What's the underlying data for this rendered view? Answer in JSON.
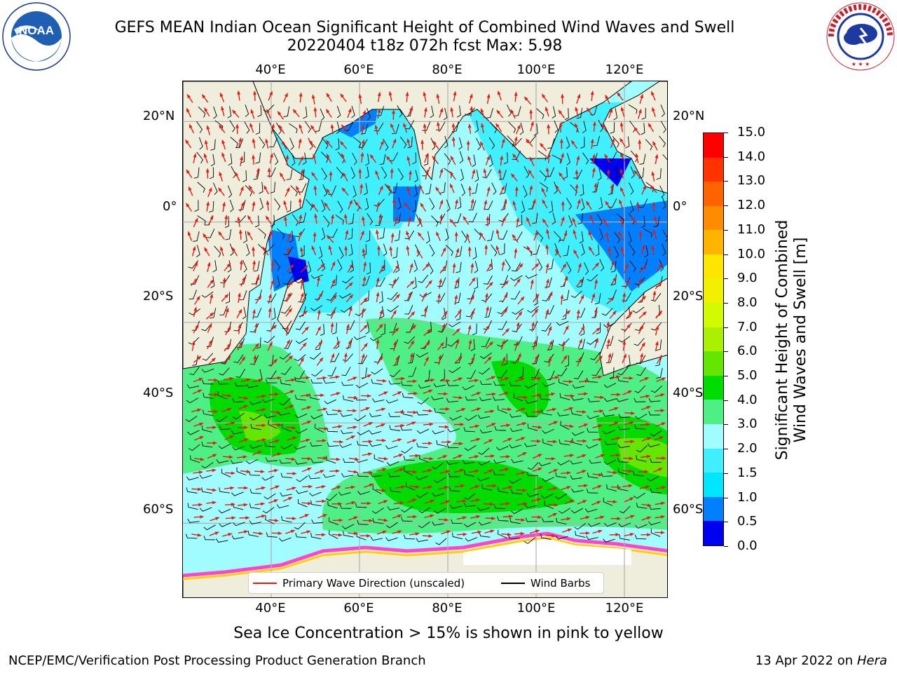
{
  "header": {
    "title": "GEFS MEAN Indian Ocean Significant Height of Combined Wind Waves and Swell",
    "subtitle": "20220404 t18z 072h fcst   Max: 5.98"
  },
  "logos": {
    "left": {
      "icon": "noaa-logo",
      "text": "NOAA",
      "ring_text": "NATIONAL OCEANIC AND ATMOSPHERIC ADMINISTRATION · U.S. DEPARTMENT OF COMMERCE"
    },
    "right": {
      "icon": "national-weather-service-logo",
      "ring_text": "NATIONAL WEATHER SERVICE"
    }
  },
  "map": {
    "lon_labels": [
      "40°E",
      "60°E",
      "80°E",
      "100°E",
      "120°E"
    ],
    "lat_labels": [
      "20°N",
      "0°",
      "20°S",
      "40°S",
      "60°S"
    ],
    "lon_range": [
      20,
      130
    ],
    "lat_range": [
      -75,
      28
    ],
    "land_color": "#efeedd",
    "grid_color": "#b0b0b0",
    "wave_arrow_color": "#e8190f",
    "wind_barb_color": "#000000",
    "sea_ice_colors": [
      "#ff44cc",
      "#ffd000",
      "#ffffff"
    ]
  },
  "legend": {
    "items": [
      {
        "label": "Primary Wave Direction (unscaled)",
        "color": "#e8190f"
      },
      {
        "label": "Wind Barbs",
        "color": "#000000"
      }
    ]
  },
  "colorbar": {
    "title_line1": "Significant Height of Combined",
    "title_line2": "Wind Waves and Swell [m]",
    "ticks": [
      "0.0",
      "0.5",
      "1.0",
      "1.5",
      "2.0",
      "3.0",
      "4.0",
      "5.0",
      "6.0",
      "7.0",
      "8.0",
      "9.0",
      "10.0",
      "11.0",
      "12.0",
      "13.0",
      "14.0",
      "15.0"
    ],
    "colors": [
      "#0000f0",
      "#0080ff",
      "#00e6ff",
      "#40f0ff",
      "#a0fcff",
      "#4ef085",
      "#00dc00",
      "#64e600",
      "#aaf000",
      "#d2fa00",
      "#f0f000",
      "#ffe600",
      "#ffb400",
      "#ff8c00",
      "#ff6400",
      "#ff3200",
      "#ff0000"
    ]
  },
  "footer": {
    "sea_ice_note": "Sea Ice Concentration > 15% is shown in pink to yellow",
    "credit": "NCEP/EMC/Verification Post Processing Product Generation Branch",
    "date": "13 Apr 2022 on",
    "machine": "Hera"
  }
}
